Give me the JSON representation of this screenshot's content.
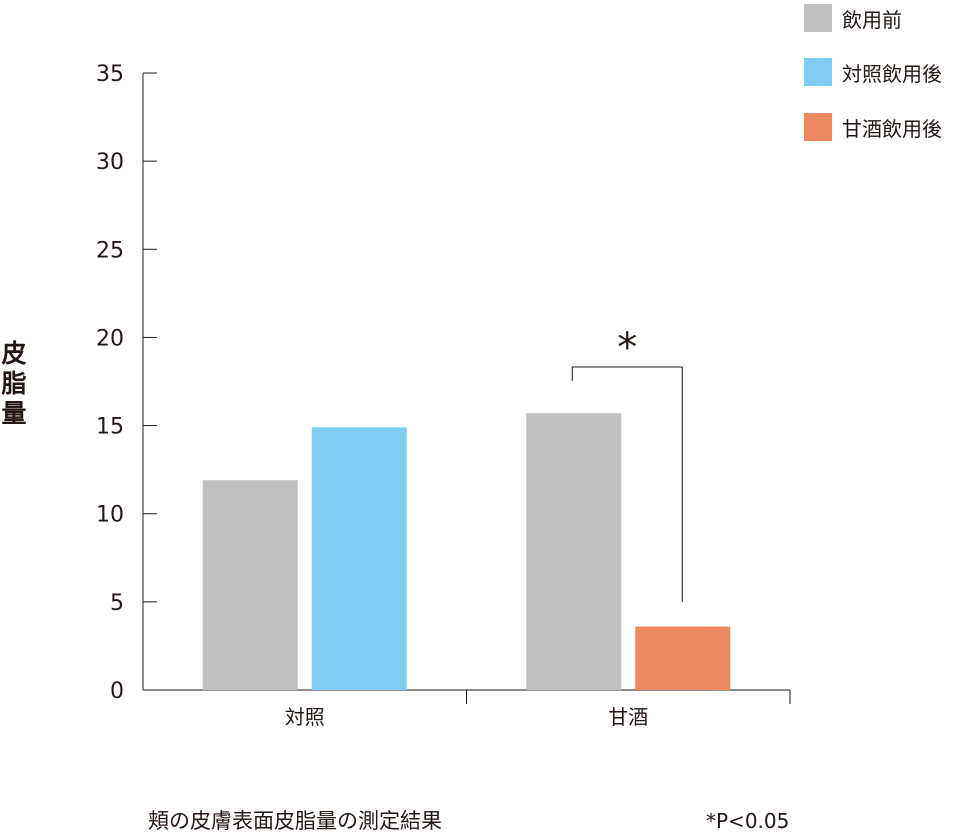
{
  "chart_data": {
    "type": "bar",
    "ylabel": "皮脂量",
    "ylim": [
      0,
      35
    ],
    "yticks": [
      0,
      5,
      10,
      15,
      20,
      25,
      30,
      35
    ],
    "categories": [
      "対照",
      "甘酒"
    ],
    "series": [
      {
        "name": "飲用前",
        "color": "#c0c0c0",
        "values": [
          11.9,
          15.7
        ]
      },
      {
        "name": "対照飲用後",
        "color": "#7fcdf3",
        "values": [
          14.9,
          null
        ]
      },
      {
        "name": "甘酒飲用後",
        "color": "#ee8860",
        "values": [
          null,
          3.6
        ]
      }
    ],
    "legend_position": "top-right",
    "significance": {
      "category": "甘酒",
      "marker": "*"
    },
    "caption": "頬の皮膚表面皮脂量の測定結果",
    "footnote": "*P<0.05",
    "grid": false
  }
}
